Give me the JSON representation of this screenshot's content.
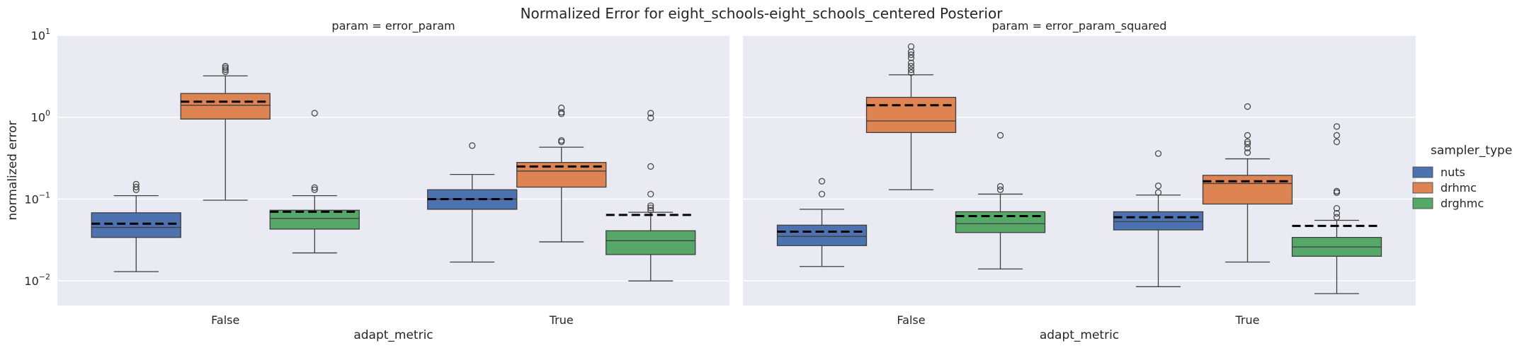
{
  "chart_data": {
    "type": "box",
    "title": "Normalized Error for eight_schools-eight_schools_centered Posterior",
    "xlabel": "adapt_metric",
    "ylabel": "normalized error",
    "yscale": "log",
    "ylim": [
      0.005,
      10
    ],
    "y_ticks": [
      {
        "value": 0.01,
        "base": "10",
        "exp": "−2"
      },
      {
        "value": 0.1,
        "base": "10",
        "exp": "−1"
      },
      {
        "value": 1,
        "base": "10",
        "exp": "0"
      },
      {
        "value": 10,
        "base": "10",
        "exp": "1"
      }
    ],
    "grid": true,
    "categories": [
      "False",
      "True"
    ],
    "legend": {
      "title": "sampler_type",
      "placement": "right",
      "entries": [
        {
          "name": "nuts",
          "color": "#4c72b0"
        },
        {
          "name": "drhmc",
          "color": "#dd8452"
        },
        {
          "name": "drghmc",
          "color": "#55a868"
        }
      ]
    },
    "mean_line_style": "black dashed line = mean",
    "panels": [
      {
        "title": "param = error_param",
        "groups": [
          {
            "category": "False",
            "boxes": [
              {
                "series": "nuts",
                "whislo": 0.013,
                "q1": 0.034,
                "med": 0.045,
                "q3": 0.068,
                "whishi": 0.11,
                "mean": 0.05,
                "fliers": [
                  0.13,
                  0.14,
                  0.152
                ]
              },
              {
                "series": "drhmc",
                "whislo": 0.097,
                "q1": 0.95,
                "med": 1.4,
                "q3": 1.95,
                "whishi": 3.2,
                "mean": 1.55,
                "fliers": [
                  3.6,
                  3.8,
                  4.0,
                  4.2
                ]
              },
              {
                "series": "drghmc",
                "whislo": 0.022,
                "q1": 0.043,
                "med": 0.058,
                "q3": 0.073,
                "whishi": 0.11,
                "mean": 0.07,
                "fliers": [
                  0.13,
                  0.138,
                  1.12
                ]
              }
            ]
          },
          {
            "category": "True",
            "boxes": [
              {
                "series": "nuts",
                "whislo": 0.017,
                "q1": 0.075,
                "med": 0.1,
                "q3": 0.13,
                "whishi": 0.2,
                "mean": 0.1,
                "fliers": [
                  0.45
                ]
              },
              {
                "series": "drhmc",
                "whislo": 0.03,
                "q1": 0.14,
                "med": 0.22,
                "q3": 0.28,
                "whishi": 0.43,
                "mean": 0.25,
                "fliers": [
                  0.5,
                  0.52,
                  1.1,
                  1.15,
                  1.3
                ]
              },
              {
                "series": "drghmc",
                "whislo": 0.01,
                "q1": 0.021,
                "med": 0.031,
                "q3": 0.041,
                "whishi": 0.069,
                "mean": 0.064,
                "fliers": [
                  0.073,
                  0.078,
                  0.083,
                  0.115,
                  0.25,
                  0.98,
                  1.12
                ]
              }
            ]
          }
        ]
      },
      {
        "title": "param = error_param_squared",
        "groups": [
          {
            "category": "False",
            "boxes": [
              {
                "series": "nuts",
                "whislo": 0.015,
                "q1": 0.027,
                "med": 0.035,
                "q3": 0.048,
                "whishi": 0.075,
                "mean": 0.04,
                "fliers": [
                  0.115,
                  0.165
                ]
              },
              {
                "series": "drhmc",
                "whislo": 0.13,
                "q1": 0.65,
                "med": 0.9,
                "q3": 1.75,
                "whishi": 3.3,
                "mean": 1.4,
                "fliers": [
                  3.5,
                  3.8,
                  4.2,
                  4.6,
                  5.3,
                  5.8,
                  6.3,
                  7.3
                ]
              },
              {
                "series": "drghmc",
                "whislo": 0.014,
                "q1": 0.039,
                "med": 0.05,
                "q3": 0.07,
                "whishi": 0.115,
                "mean": 0.062,
                "fliers": [
                  0.13,
                  0.143,
                  0.6
                ]
              }
            ]
          },
          {
            "category": "True",
            "boxes": [
              {
                "series": "nuts",
                "whislo": 0.0085,
                "q1": 0.042,
                "med": 0.053,
                "q3": 0.07,
                "whishi": 0.112,
                "mean": 0.06,
                "fliers": [
                  0.12,
                  0.145,
                  0.36
                ]
              },
              {
                "series": "drhmc",
                "whislo": 0.017,
                "q1": 0.087,
                "med": 0.155,
                "q3": 0.195,
                "whishi": 0.31,
                "mean": 0.165,
                "fliers": [
                  0.37,
                  0.42,
                  0.47,
                  0.5,
                  0.6,
                  1.35
                ]
              },
              {
                "series": "drghmc",
                "whislo": 0.007,
                "q1": 0.02,
                "med": 0.026,
                "q3": 0.034,
                "whishi": 0.055,
                "mean": 0.047,
                "fliers": [
                  0.06,
                  0.067,
                  0.077,
                  0.12,
                  0.125,
                  0.5,
                  0.6,
                  0.77
                ]
              }
            ]
          }
        ]
      }
    ]
  }
}
